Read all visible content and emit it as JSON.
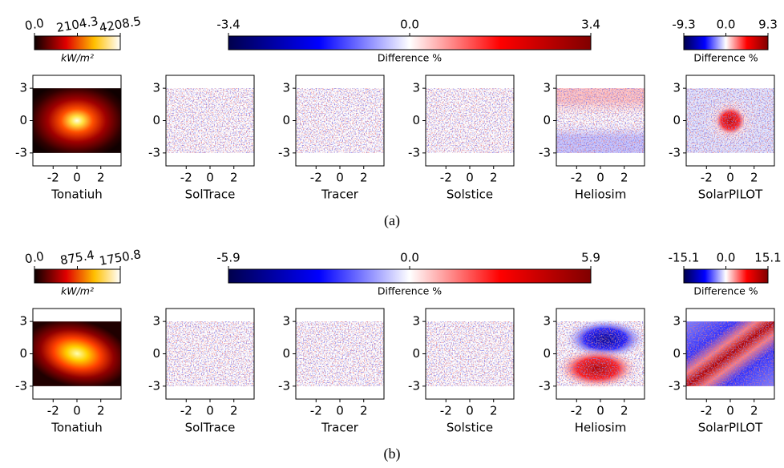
{
  "rows": [
    {
      "label": "(a)",
      "flux_colorbar": {
        "label": "kW/m²",
        "lim": [
          0,
          4208.5
        ],
        "ticks": [
          {
            "value": 0,
            "label": "0.0"
          },
          2104.3,
          4208.5
        ]
      },
      "difference_colorbar": {
        "label": "Difference %",
        "lim": [
          -3.4,
          3.4
        ],
        "ticks": [
          -3.4,
          {
            "value": 0,
            "label": "0.0"
          },
          3.4
        ]
      },
      "solarpilot_colorbar": {
        "label": "Difference %",
        "lim": [
          -9.3,
          9.3
        ],
        "ticks": [
          -9.3,
          {
            "value": 0,
            "label": "0.0"
          },
          9.3
        ]
      },
      "panels": [
        "Tonatiuh",
        "SolTrace",
        "Tracer",
        "Solstice",
        "Heliosim",
        "SolarPILOT"
      ]
    },
    {
      "label": "(b)",
      "flux_colorbar": {
        "label": "kW/m²",
        "lim": [
          0,
          1750.8
        ],
        "ticks": [
          {
            "value": 0,
            "label": "0.0"
          },
          875.4,
          1750.8
        ]
      },
      "difference_colorbar": {
        "label": "Difference %",
        "lim": [
          -5.9,
          5.9
        ],
        "ticks": [
          -5.9,
          {
            "value": 0,
            "label": "0.0"
          },
          5.9
        ]
      },
      "solarpilot_colorbar": {
        "label": "Difference %",
        "lim": [
          -15.1,
          15.1
        ],
        "ticks": [
          -15.1,
          {
            "value": 0,
            "label": "0.0"
          },
          15.1
        ]
      },
      "panels": [
        "Tonatiuh",
        "SolTrace",
        "Tracer",
        "Solstice",
        "Heliosim",
        "SolarPILOT"
      ]
    }
  ],
  "xlim": [
    -3.7,
    3.7
  ],
  "ylim": [
    -4.2,
    4.2
  ],
  "xticks": [
    -2,
    0,
    2
  ],
  "yticks": [
    -3,
    0,
    3
  ]
}
